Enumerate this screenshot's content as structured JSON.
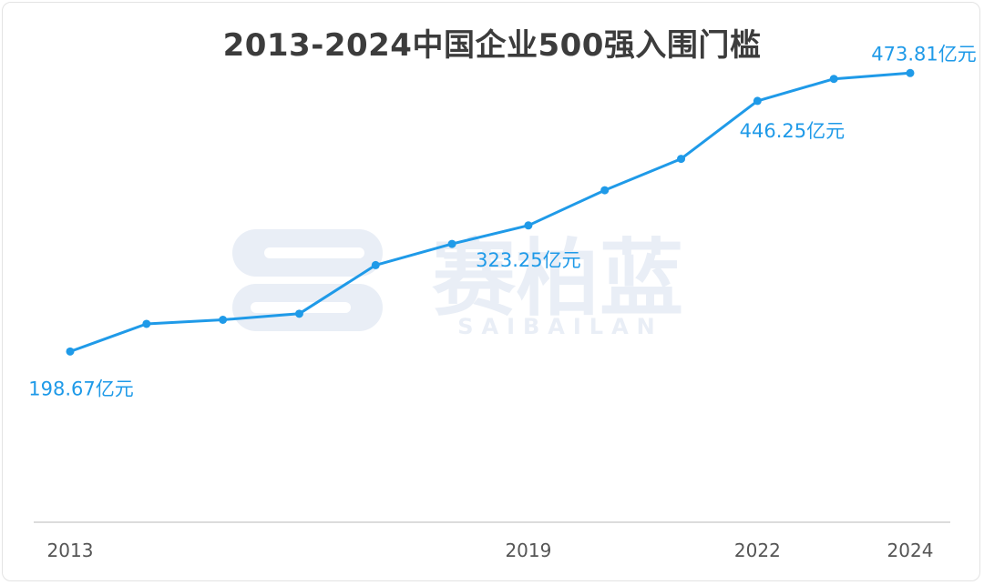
{
  "chart_data": {
    "type": "line",
    "title": "2013-2024中国企业500强入围门槛",
    "x": [
      2013,
      2014,
      2015,
      2016,
      2017,
      2018,
      2019,
      2020,
      2021,
      2022,
      2023,
      2024
    ],
    "tick_labels": [
      "2013",
      "2019",
      "2022",
      "2024"
    ],
    "series": [
      {
        "values": [
          198.67,
          226.0,
          230.0,
          236.0,
          284.0,
          305.0,
          323.25,
          358.0,
          389.0,
          446.25,
          468.0,
          473.81
        ]
      }
    ],
    "data_labels": [
      {
        "year": 2013,
        "text": "198.67亿元"
      },
      {
        "year": 2019,
        "text": "323.25亿元"
      },
      {
        "year": 2022,
        "text": "446.25亿元"
      },
      {
        "year": 2024,
        "text": "473.81亿元"
      }
    ],
    "ylim": [
      30,
      510
    ],
    "grid": false,
    "line_color": "#1f9ae8"
  },
  "watermark": {
    "cn": "赛柏蓝",
    "en": "SAIBAILAN"
  }
}
